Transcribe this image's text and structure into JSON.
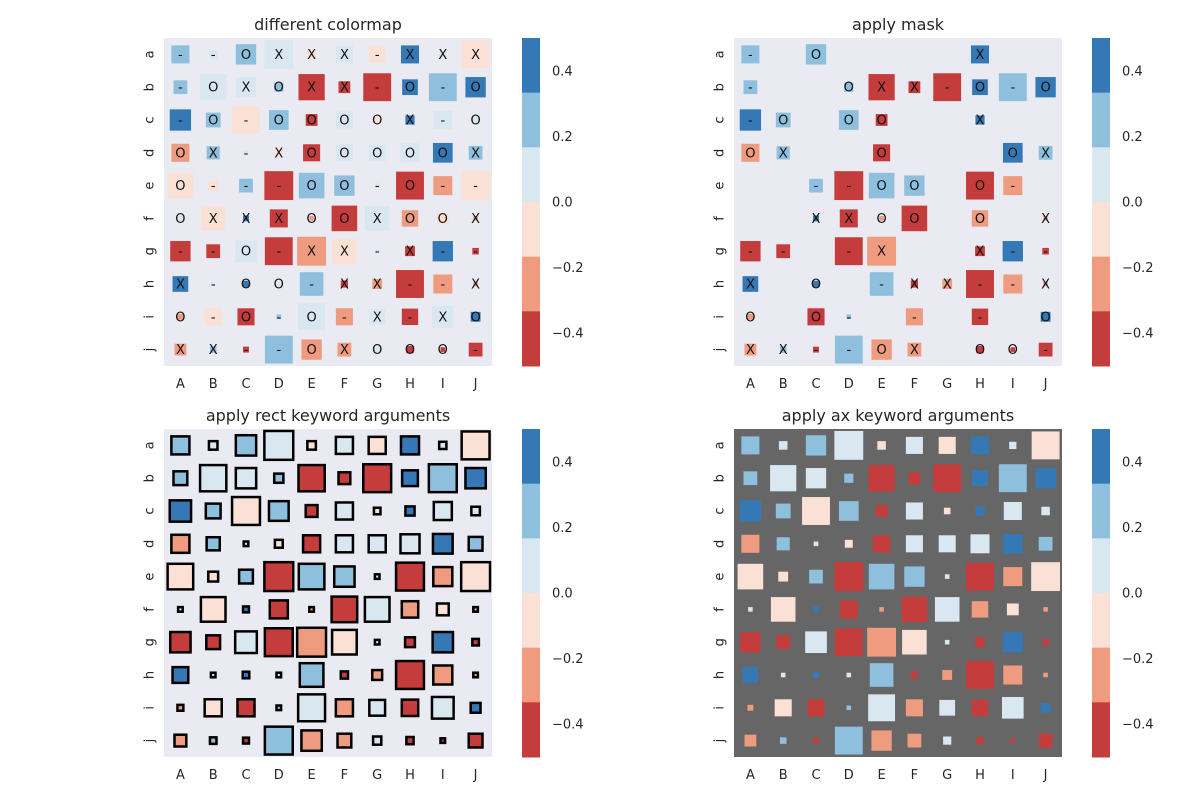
{
  "chart_data": {
    "shared": {
      "type": "heatmap",
      "x_categories": [
        "A",
        "B",
        "C",
        "D",
        "E",
        "F",
        "G",
        "H",
        "I",
        "J"
      ],
      "y_categories": [
        "a",
        "b",
        "c",
        "d",
        "e",
        "f",
        "g",
        "h",
        "i",
        "j"
      ],
      "color_scale": {
        "min": -0.5,
        "max": 0.5,
        "bins": 6,
        "colors": [
          "#c43c3c",
          "#ee9b7f",
          "#fbe1d5",
          "#d9e7f1",
          "#8ebfdc",
          "#3479b5"
        ]
      },
      "colorbar_ticks": [
        "0.4",
        "0.2",
        "0.0",
        "−0.2",
        "−0.4"
      ],
      "colorbar_tick_values": [
        0.4,
        0.2,
        0.0,
        -0.2,
        -0.4
      ],
      "level_values": [
        -0.4167,
        -0.25,
        -0.0833,
        0.0833,
        0.25,
        0.4167
      ],
      "levels": [
        [
          4,
          3,
          4,
          3,
          2,
          3,
          2,
          5,
          3,
          2
        ],
        [
          4,
          3,
          3,
          4,
          0,
          0,
          0,
          5,
          4,
          5
        ],
        [
          5,
          4,
          2,
          4,
          0,
          3,
          2,
          5,
          3,
          3
        ],
        [
          1,
          4,
          3,
          2,
          0,
          3,
          3,
          3,
          5,
          4
        ],
        [
          2,
          2,
          4,
          0,
          4,
          4,
          3,
          0,
          1,
          2
        ],
        [
          3,
          2,
          5,
          0,
          1,
          0,
          3,
          1,
          2,
          1
        ],
        [
          0,
          0,
          3,
          0,
          1,
          2,
          3,
          0,
          5,
          0
        ],
        [
          5,
          3,
          5,
          3,
          4,
          0,
          1,
          0,
          1,
          1
        ],
        [
          1,
          2,
          0,
          4,
          3,
          1,
          3,
          0,
          3,
          5
        ],
        [
          1,
          4,
          0,
          4,
          1,
          1,
          3,
          0,
          0,
          0
        ]
      ],
      "sizes": [
        [
          0.55,
          0.26,
          0.62,
          0.88,
          0.26,
          0.52,
          0.52,
          0.55,
          0.22,
          0.85
        ],
        [
          0.42,
          0.8,
          0.62,
          0.28,
          0.8,
          0.36,
          0.85,
          0.48,
          0.85,
          0.62
        ],
        [
          0.65,
          0.45,
          0.85,
          0.6,
          0.36,
          0.52,
          0.2,
          0.28,
          0.55,
          0.26
        ],
        [
          0.55,
          0.4,
          0.14,
          0.24,
          0.52,
          0.52,
          0.52,
          0.58,
          0.6,
          0.42
        ],
        [
          0.78,
          0.3,
          0.42,
          0.88,
          0.78,
          0.62,
          0.14,
          0.85,
          0.58,
          0.88
        ],
        [
          0.14,
          0.75,
          0.18,
          0.55,
          0.14,
          0.78,
          0.75,
          0.5,
          0.36,
          0.14
        ],
        [
          0.62,
          0.42,
          0.66,
          0.85,
          0.88,
          0.75,
          0.14,
          0.3,
          0.62,
          0.2
        ],
        [
          0.48,
          0.14,
          0.2,
          0.14,
          0.72,
          0.22,
          0.3,
          0.85,
          0.58,
          0.14
        ],
        [
          0.18,
          0.52,
          0.52,
          0.14,
          0.82,
          0.52,
          0.48,
          0.5,
          0.66,
          0.3
        ],
        [
          0.36,
          0.2,
          0.18,
          0.85,
          0.62,
          0.42,
          0.25,
          0.22,
          0.14,
          0.42
        ]
      ],
      "markers": [
        [
          "-",
          "-",
          "O",
          "X",
          "X",
          "X",
          "-",
          "X",
          "X",
          "X"
        ],
        [
          "-",
          "O",
          "X",
          "O",
          "X",
          "X",
          "-",
          "O",
          "-",
          "O"
        ],
        [
          "-",
          "O",
          "-",
          "O",
          "O",
          "O",
          "O",
          "X",
          "-",
          "O"
        ],
        [
          "O",
          "X",
          "-",
          "X",
          "O",
          "O",
          "O",
          "O",
          "O",
          "X"
        ],
        [
          "O",
          "-",
          "-",
          "-",
          "O",
          "O",
          "-",
          "O",
          "-",
          "-"
        ],
        [
          "O",
          "X",
          "X",
          "X",
          "O",
          "O",
          "X",
          "O",
          "O",
          "X"
        ],
        [
          "-",
          "-",
          "O",
          "-",
          "X",
          "X",
          "-",
          "X",
          "-",
          "-"
        ],
        [
          "X",
          "-",
          "O",
          "O",
          "-",
          "X",
          "X",
          "-",
          "-",
          "X"
        ],
        [
          "O",
          "-",
          "O",
          "-",
          "O",
          "-",
          "X",
          "-",
          "X",
          "O"
        ],
        [
          "X",
          "X",
          "-",
          "-",
          "O",
          "X",
          "O",
          "O",
          "O",
          "-"
        ]
      ]
    },
    "panels": [
      {
        "title": "different colormap",
        "variant": "markers"
      },
      {
        "title": "apply mask",
        "variant": "mask"
      },
      {
        "title": "apply rect keyword arguments",
        "variant": "rect"
      },
      {
        "title": "apply ax keyword arguments",
        "variant": "ax"
      }
    ]
  }
}
